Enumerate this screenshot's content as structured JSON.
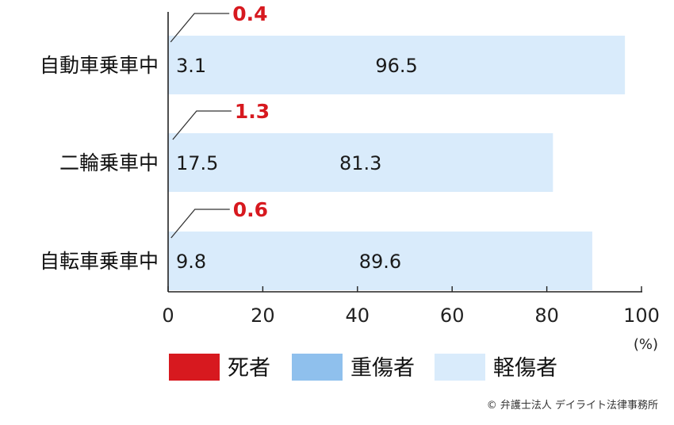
{
  "chart_data": {
    "type": "bar",
    "orientation": "horizontal",
    "stacked": true,
    "categories": [
      "自動車乗車中",
      "二輪乗車中",
      "自転車乗車中"
    ],
    "series": [
      {
        "name": "死者",
        "values": [
          0.4,
          1.3,
          0.6
        ],
        "labels": [
          "0.4",
          "1.3",
          "0.6"
        ]
      },
      {
        "name": "重傷者",
        "values": [
          3.1,
          17.5,
          9.8
        ],
        "labels": [
          "3.1",
          "17.5",
          "9.8"
        ]
      },
      {
        "name": "軽傷者",
        "values": [
          96.5,
          81.3,
          89.6
        ],
        "labels": [
          "96.5",
          "81.3",
          "89.6"
        ]
      }
    ],
    "xlim": [
      0,
      100
    ],
    "xticks": [
      "0",
      "20",
      "40",
      "60",
      "80",
      "100"
    ],
    "xunit": "(%)",
    "grid": false,
    "legend_position": "bottom",
    "colors": {
      "death": "#d7191f",
      "serious": "#8fc0ed",
      "minor": "#d9ebfb",
      "axis": "#222222"
    }
  },
  "credit": "© 弁護士法人 デイライト法律事務所"
}
